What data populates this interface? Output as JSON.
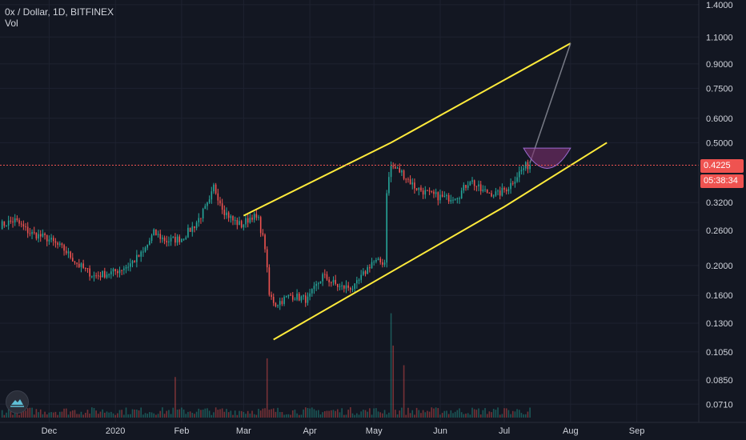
{
  "header": {
    "symbol_line": "0x / Dollar, 1D, BITFINEX",
    "volume_label": "Vol"
  },
  "price_tags": {
    "last_price": "0.4225",
    "countdown": "05:38:34"
  },
  "colors": {
    "background": "#131722",
    "up": "#26a69a",
    "down": "#ef5350",
    "channel": "#ffeb3b",
    "projection": "#787b86",
    "arc_fill": "#7b2f6e",
    "axis_text": "#d1d4dc",
    "price_line": "#ef5350"
  },
  "chart_data": {
    "type": "candlestick",
    "title": "0x / Dollar, 1D, BITFINEX",
    "y_scale": "log",
    "ylim": [
      0.062,
      1.45
    ],
    "y_ticks": [
      "1.4000",
      "1.1000",
      "0.9000",
      "0.7500",
      "0.6000",
      "0.5000",
      "0.4225",
      "0.3200",
      "0.2600",
      "0.2000",
      "0.1600",
      "0.1300",
      "0.1050",
      "0.0850",
      "0.0710"
    ],
    "x_ticks": [
      "Dec",
      "2020",
      "Feb",
      "Mar",
      "Apr",
      "May",
      "Jun",
      "Jul",
      "Aug",
      "Sep"
    ],
    "x_tick_dates": [
      "2019-12-01",
      "2020-01-01",
      "2020-02-01",
      "2020-03-01",
      "2020-04-01",
      "2020-05-01",
      "2020-06-01",
      "2020-07-01",
      "2020-08-01",
      "2020-09-01"
    ],
    "x_range": [
      "2019-11-08",
      "2020-09-30"
    ],
    "last_price": 0.4225,
    "price_anchors": [
      [
        "2019-11-08",
        0.27
      ],
      [
        "2019-11-15",
        0.28
      ],
      [
        "2019-11-22",
        0.255
      ],
      [
        "2019-11-30",
        0.245
      ],
      [
        "2019-12-08",
        0.225
      ],
      [
        "2019-12-15",
        0.2
      ],
      [
        "2019-12-22",
        0.185
      ],
      [
        "2019-12-31",
        0.19
      ],
      [
        "2020-01-07",
        0.2
      ],
      [
        "2020-01-14",
        0.22
      ],
      [
        "2020-01-19",
        0.255
      ],
      [
        "2020-01-25",
        0.24
      ],
      [
        "2020-02-01",
        0.245
      ],
      [
        "2020-02-07",
        0.27
      ],
      [
        "2020-02-14",
        0.32
      ],
      [
        "2020-02-16",
        0.36
      ],
      [
        "2020-02-21",
        0.3
      ],
      [
        "2020-02-25",
        0.28
      ],
      [
        "2020-02-29",
        0.27
      ],
      [
        "2020-03-05",
        0.29
      ],
      [
        "2020-03-08",
        0.28
      ],
      [
        "2020-03-11",
        0.23
      ],
      [
        "2020-03-13",
        0.16
      ],
      [
        "2020-03-16",
        0.15
      ],
      [
        "2020-03-23",
        0.16
      ],
      [
        "2020-03-31",
        0.155
      ],
      [
        "2020-04-07",
        0.185
      ],
      [
        "2020-04-15",
        0.17
      ],
      [
        "2020-04-22",
        0.17
      ],
      [
        "2020-04-30",
        0.205
      ],
      [
        "2020-05-06",
        0.205
      ],
      [
        "2020-05-07",
        0.35
      ],
      [
        "2020-05-09",
        0.42
      ],
      [
        "2020-05-14",
        0.4
      ],
      [
        "2020-05-20",
        0.36
      ],
      [
        "2020-05-27",
        0.34
      ],
      [
        "2020-06-04",
        0.33
      ],
      [
        "2020-06-10",
        0.34
      ],
      [
        "2020-06-15",
        0.38
      ],
      [
        "2020-06-20",
        0.35
      ],
      [
        "2020-06-28",
        0.34
      ],
      [
        "2020-07-03",
        0.36
      ],
      [
        "2020-07-08",
        0.4
      ],
      [
        "2020-07-11",
        0.42
      ],
      [
        "2020-07-13",
        0.4225
      ]
    ],
    "channel": {
      "upper": [
        [
          "2020-03-01",
          0.29
        ],
        [
          "2020-05-09",
          0.5
        ],
        [
          "2020-08-01",
          1.05
        ]
      ],
      "lower": [
        [
          "2020-03-15",
          0.115
        ],
        [
          "2020-07-01",
          0.31
        ],
        [
          "2020-08-18",
          0.5
        ]
      ]
    },
    "projection": [
      [
        "2020-07-13",
        0.43
      ],
      [
        "2020-08-01",
        1.05
      ]
    ],
    "volume_spikes": [
      [
        "2020-01-29",
        0.087
      ],
      [
        "2020-03-12",
        0.1
      ],
      [
        "2020-05-09",
        0.14
      ],
      [
        "2020-05-10",
        0.11
      ],
      [
        "2020-05-15",
        0.095
      ]
    ]
  }
}
